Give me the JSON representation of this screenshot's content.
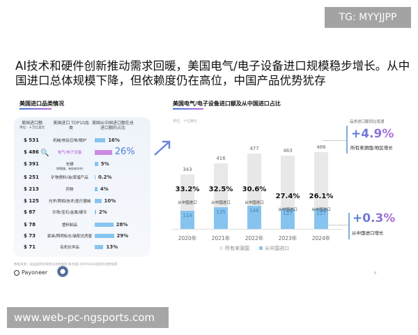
{
  "badge": "TG: MYYJJPP",
  "title": "AI技术和硬件创新推动需求回暖，美国电气/电子设备进口规模稳步增长。从中国进口总体规模下降，但依赖度仍在高位，中国产品优势犹存",
  "left": {
    "heading": "美国进口品类情况",
    "col1": "美国进口额",
    "col1_unit": "单位：十万亿美元",
    "col2": "美国进口 TOP10品类",
    "col3": "美国从中国进口额在总进口额的占比",
    "rows": [
      {
        "amount": "$ 531",
        "category": "机械/核反应堆/锅炉",
        "share": "16%",
        "value": 16
      },
      {
        "amount": "$ 486",
        "category": "电气/电子设备",
        "share": "26%",
        "value": 26,
        "highlight": true
      },
      {
        "amount": "$ 391",
        "category": "车辆",
        "sub": "(除铁路、有轨电车外)",
        "share": "5%",
        "value": 5
      },
      {
        "amount": "$ 251",
        "category": "矿物燃料/油/蒸馏产品",
        "share": "0.2%",
        "value": 0.2
      },
      {
        "amount": "$ 213",
        "category": "药物",
        "share": "4%",
        "value": 4
      },
      {
        "amount": "$ 125",
        "category": "光学/照相/技术/医疗器械",
        "share": "10%",
        "value": 10
      },
      {
        "amount": "$ 87",
        "category": "珍珠/宝石/金属/硬币",
        "share": "2%",
        "value": 2
      },
      {
        "amount": "$ 78",
        "category": "塑料制品",
        "share": "28%",
        "value": 28
      },
      {
        "amount": "$ 73",
        "category": "家具/照明标志/装配式房屋",
        "share": "29%",
        "value": 29
      },
      {
        "amount": "$ 71",
        "category": "有机化学品",
        "share": "13%",
        "value": 13
      }
    ]
  },
  "chart_data": {
    "type": "bar",
    "title": "美国电气/电子设备进口额及从中国进口占比",
    "unit": "单位：十亿美元",
    "categories": [
      "2020年",
      "2021年",
      "2022年",
      "2023年",
      "2024年"
    ],
    "series": [
      {
        "name": "所有来源国",
        "values": [
          343,
          416,
          477,
          463,
          486
        ],
        "color": "#e8e8e8"
      },
      {
        "name": "从中国进口",
        "values": [
          114,
          135,
          146,
          127,
          127
        ],
        "color": "#86c4ef"
      }
    ],
    "share_labels": [
      "33.2%",
      "32.5%",
      "30.6%",
      "27.4%",
      "26.1%"
    ],
    "share_caption": "从中国进口",
    "growth_heading": "品类进口额同比增速",
    "growth": [
      {
        "value": "+4.9%",
        "label": "所有来源国/地区增长"
      },
      {
        "value": "+0.3%",
        "label": "从中国进口增长"
      }
    ]
  },
  "footer": {
    "source": "数据来源：美国国际贸易委员会数据库 联合国COMTRADE国际贸易数据库",
    "brand": "Payoneer",
    "page": "8"
  },
  "watermark": "www.web-pc-ngsports.com"
}
